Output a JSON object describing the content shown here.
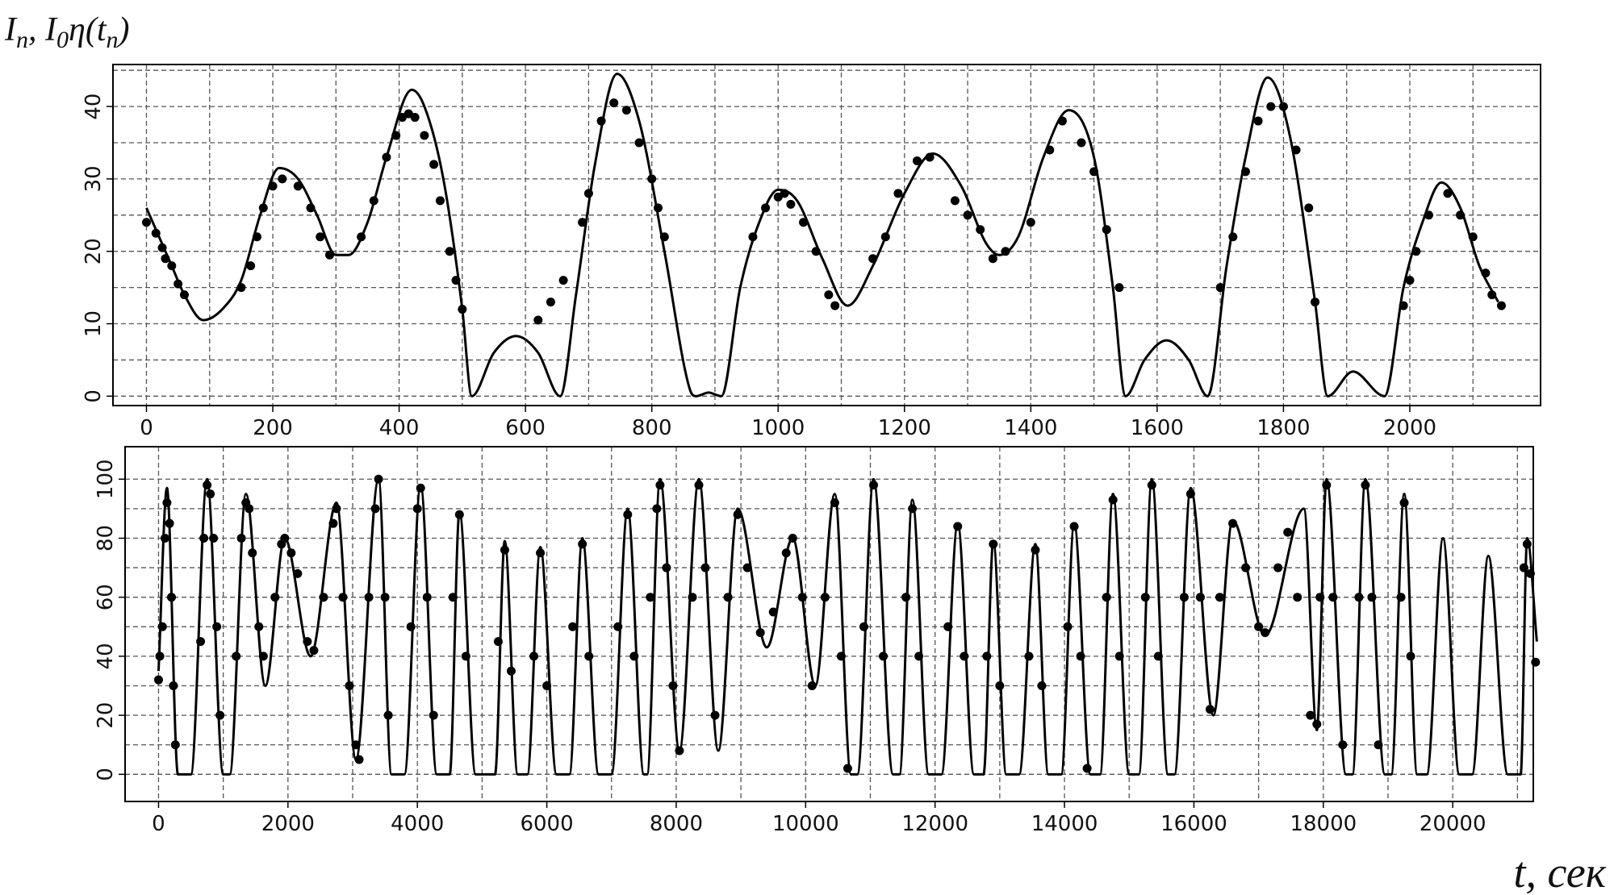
{
  "chart_data": [
    {
      "type": "line",
      "ylabel": [
        {
          "text": "I"
        },
        {
          "text": "n",
          "sub": true
        },
        {
          "text": ", I"
        },
        {
          "text": "0",
          "sub": true
        },
        {
          "text": "η(t"
        },
        {
          "text": "n",
          "sub": true
        },
        {
          "text": ")"
        }
      ],
      "xlim": [
        -53,
        2207
      ],
      "ylim": [
        -1.3,
        45.8
      ],
      "xticks": [
        0,
        200,
        400,
        600,
        800,
        1000,
        1200,
        1400,
        1600,
        1800,
        2000
      ],
      "xminor": [
        100,
        300,
        500,
        700,
        900,
        1100,
        1300,
        1500,
        1700,
        1900,
        2100
      ],
      "yticks": [
        0,
        10,
        20,
        30,
        40
      ],
      "yminor": [
        5,
        15,
        25,
        35,
        45
      ],
      "grid": true,
      "series": [
        {
          "style": "line",
          "color": "#000000",
          "x": [
            0,
            20,
            40,
            60,
            90,
            120,
            150,
            180,
            210,
            240,
            270,
            300,
            320,
            350,
            380,
            420,
            440,
            470,
            500,
            515,
            550,
            585,
            620,
            655,
            680,
            710,
            745,
            780,
            820,
            860,
            870,
            890,
            910,
            940,
            970,
            1000,
            1030,
            1070,
            1110,
            1150,
            1200,
            1245,
            1290,
            1330,
            1350,
            1380,
            1420,
            1460,
            1500,
            1530,
            1550,
            1580,
            1615,
            1650,
            1680,
            1710,
            1740,
            1775,
            1810,
            1850,
            1870,
            1910,
            1960,
            1990,
            2020,
            2050,
            2080,
            2110,
            2140
          ],
          "values": [
            26,
            22,
            18,
            14,
            10.5,
            12,
            16,
            25,
            31.5,
            30,
            25,
            19.5,
            19.5,
            24,
            33,
            42.3,
            40,
            30,
            12,
            0,
            6,
            8.3,
            6,
            0,
            14,
            32,
            44.5,
            38,
            20,
            1,
            0,
            0.5,
            0,
            15,
            24,
            28.5,
            27,
            19,
            12.5,
            18,
            28,
            33.5,
            29,
            21,
            19.5,
            22,
            33,
            39.5,
            33,
            15,
            0,
            5,
            7.7,
            5,
            0,
            18,
            33,
            44,
            36,
            13,
            0,
            3.4,
            0,
            15,
            24,
            29.5,
            26,
            18,
            13
          ]
        },
        {
          "style": "points",
          "color": "#000000",
          "x": [
            0,
            15,
            25,
            30,
            40,
            50,
            60,
            150,
            165,
            175,
            185,
            200,
            215,
            240,
            260,
            275,
            290,
            340,
            360,
            380,
            395,
            405,
            415,
            425,
            440,
            455,
            465,
            480,
            490,
            500,
            620,
            640,
            660,
            690,
            700,
            720,
            740,
            760,
            780,
            800,
            810,
            820,
            960,
            980,
            1000,
            1010,
            1020,
            1040,
            1060,
            1080,
            1090,
            1150,
            1170,
            1190,
            1220,
            1240,
            1280,
            1300,
            1320,
            1340,
            1360,
            1400,
            1430,
            1450,
            1480,
            1500,
            1520,
            1540,
            1700,
            1720,
            1740,
            1760,
            1780,
            1800,
            1820,
            1840,
            1850,
            1990,
            2000,
            2010,
            2030,
            2060,
            2080,
            2100,
            2120,
            2130,
            2145
          ],
          "values": [
            24,
            22.5,
            20.5,
            19,
            18,
            15.5,
            14,
            15,
            18,
            22,
            26,
            29,
            30,
            29,
            26,
            22,
            19.5,
            22,
            27,
            33,
            36,
            38.5,
            39,
            38.5,
            36,
            32,
            27,
            20,
            16,
            12,
            10.5,
            13,
            16,
            24,
            28,
            38,
            40.5,
            39.5,
            35,
            30,
            26,
            22,
            22,
            26,
            27.5,
            28,
            26.5,
            24,
            20,
            14,
            12.5,
            19,
            22,
            28,
            32.5,
            33,
            27,
            25,
            23,
            19,
            20,
            24,
            34,
            38,
            35,
            31,
            23,
            15,
            15,
            22,
            31,
            38,
            40,
            40,
            34,
            26,
            13,
            12.5,
            16,
            20,
            25,
            28,
            25,
            22,
            17,
            14,
            12.5
          ]
        }
      ]
    },
    {
      "type": "line",
      "xlabel": "t, сек",
      "xlim": [
        -517,
        21245
      ],
      "ylim": [
        -9.2,
        111
      ],
      "xticks": [
        0,
        2000,
        4000,
        6000,
        8000,
        10000,
        12000,
        14000,
        16000,
        18000,
        20000
      ],
      "xminor": [
        1000,
        3000,
        5000,
        7000,
        9000,
        11000,
        13000,
        15000,
        17000,
        19000,
        21000
      ],
      "yticks": [
        0,
        20,
        40,
        60,
        80,
        100
      ],
      "yminor": [
        10,
        30,
        50,
        70,
        90
      ],
      "grid": true,
      "series": [
        {
          "style": "line",
          "color": "#000000",
          "x": [
            0,
            130,
            300,
            500,
            750,
            1000,
            1100,
            1350,
            1650,
            1950,
            2350,
            2750,
            3050,
            3400,
            3600,
            3800,
            4050,
            4300,
            4500,
            4650,
            4900,
            5200,
            5350,
            5550,
            5700,
            5900,
            6150,
            6350,
            6550,
            6800,
            7000,
            7250,
            7500,
            7550,
            7750,
            8050,
            8350,
            8650,
            8950,
            9400,
            9800,
            10150,
            10450,
            10700,
            10800,
            11050,
            11350,
            11450,
            11650,
            11900,
            12100,
            12350,
            12600,
            12750,
            12900,
            13100,
            13300,
            13550,
            13750,
            13950,
            14150,
            14400,
            14550,
            14750,
            15000,
            15150,
            15350,
            15600,
            15700,
            15950,
            16300,
            16600,
            17100,
            17700,
            17900,
            18050,
            18350,
            18450,
            18650,
            18950,
            19050,
            19250,
            19450,
            19600,
            19850,
            20100,
            20300,
            20550,
            20850,
            21050,
            21150,
            21300
          ],
          "values": [
            35,
            97,
            0,
            0,
            100,
            0,
            0,
            95,
            30,
            80,
            40,
            92,
            5,
            100,
            0,
            0,
            98,
            0,
            0,
            89,
            0,
            0,
            79,
            0,
            0,
            77,
            0,
            0,
            80,
            0,
            0,
            90,
            0,
            0,
            100,
            8,
            100,
            8,
            90,
            43,
            80,
            30,
            95,
            0,
            0,
            100,
            0,
            0,
            93,
            0,
            0,
            85,
            0,
            0,
            79,
            0,
            0,
            78,
            0,
            0,
            85,
            0,
            0,
            95,
            0,
            0,
            100,
            0,
            0,
            97,
            20,
            86,
            47,
            90,
            15,
            100,
            0,
            0,
            100,
            0,
            0,
            95,
            0,
            0,
            80,
            0,
            0,
            74,
            0,
            0,
            80,
            45
          ]
        },
        {
          "style": "points",
          "color": "#000000",
          "x": [
            0,
            20,
            60,
            100,
            130,
            170,
            200,
            230,
            260,
            650,
            700,
            750,
            800,
            850,
            900,
            950,
            1200,
            1280,
            1350,
            1400,
            1450,
            1550,
            1620,
            1800,
            1900,
            1950,
            2050,
            2150,
            2300,
            2400,
            2550,
            2700,
            2750,
            2850,
            2950,
            3050,
            3100,
            3250,
            3350,
            3400,
            3500,
            3550,
            3900,
            4000,
            4050,
            4150,
            4250,
            4550,
            4650,
            4750,
            5250,
            5350,
            5450,
            5800,
            5900,
            6000,
            6400,
            6550,
            6650,
            7100,
            7250,
            7350,
            7600,
            7700,
            7750,
            7850,
            7950,
            8050,
            8250,
            8350,
            8450,
            8600,
            8800,
            8950,
            9100,
            9300,
            9500,
            9700,
            9800,
            9950,
            10100,
            10300,
            10450,
            10550,
            10650,
            10900,
            11050,
            11200,
            11550,
            11650,
            11750,
            12200,
            12350,
            12450,
            12800,
            12900,
            13000,
            13450,
            13550,
            13650,
            14050,
            14150,
            14250,
            14350,
            14650,
            14750,
            14850,
            15250,
            15350,
            15450,
            15850,
            15950,
            16100,
            16250,
            16400,
            16600,
            16800,
            17000,
            17100,
            17300,
            17450,
            17600,
            17800,
            17900,
            17950,
            18050,
            18150,
            18300,
            18550,
            18650,
            18750,
            18850,
            19200,
            19250,
            19350,
            21100,
            21150,
            21200,
            21280
          ],
          "values": [
            32,
            40,
            50,
            80,
            92,
            85,
            60,
            30,
            10,
            45,
            80,
            98,
            95,
            80,
            50,
            20,
            40,
            80,
            92,
            90,
            75,
            50,
            40,
            60,
            78,
            80,
            75,
            68,
            45,
            42,
            60,
            85,
            90,
            60,
            30,
            10,
            5,
            60,
            90,
            100,
            60,
            20,
            50,
            90,
            97,
            60,
            20,
            60,
            88,
            40,
            45,
            76,
            35,
            40,
            75,
            30,
            50,
            78,
            40,
            50,
            88,
            40,
            60,
            90,
            98,
            70,
            30,
            8,
            60,
            98,
            70,
            20,
            60,
            88,
            70,
            48,
            55,
            75,
            80,
            60,
            30,
            60,
            92,
            40,
            2,
            50,
            98,
            40,
            60,
            90,
            40,
            50,
            84,
            40,
            40,
            78,
            30,
            40,
            76,
            30,
            50,
            84,
            40,
            2,
            60,
            93,
            40,
            60,
            98,
            40,
            60,
            95,
            60,
            22,
            60,
            85,
            70,
            50,
            48,
            70,
            82,
            60,
            20,
            17,
            60,
            98,
            60,
            10,
            60,
            98,
            60,
            10,
            60,
            92,
            40,
            70,
            78,
            68,
            38
          ]
        }
      ]
    }
  ]
}
